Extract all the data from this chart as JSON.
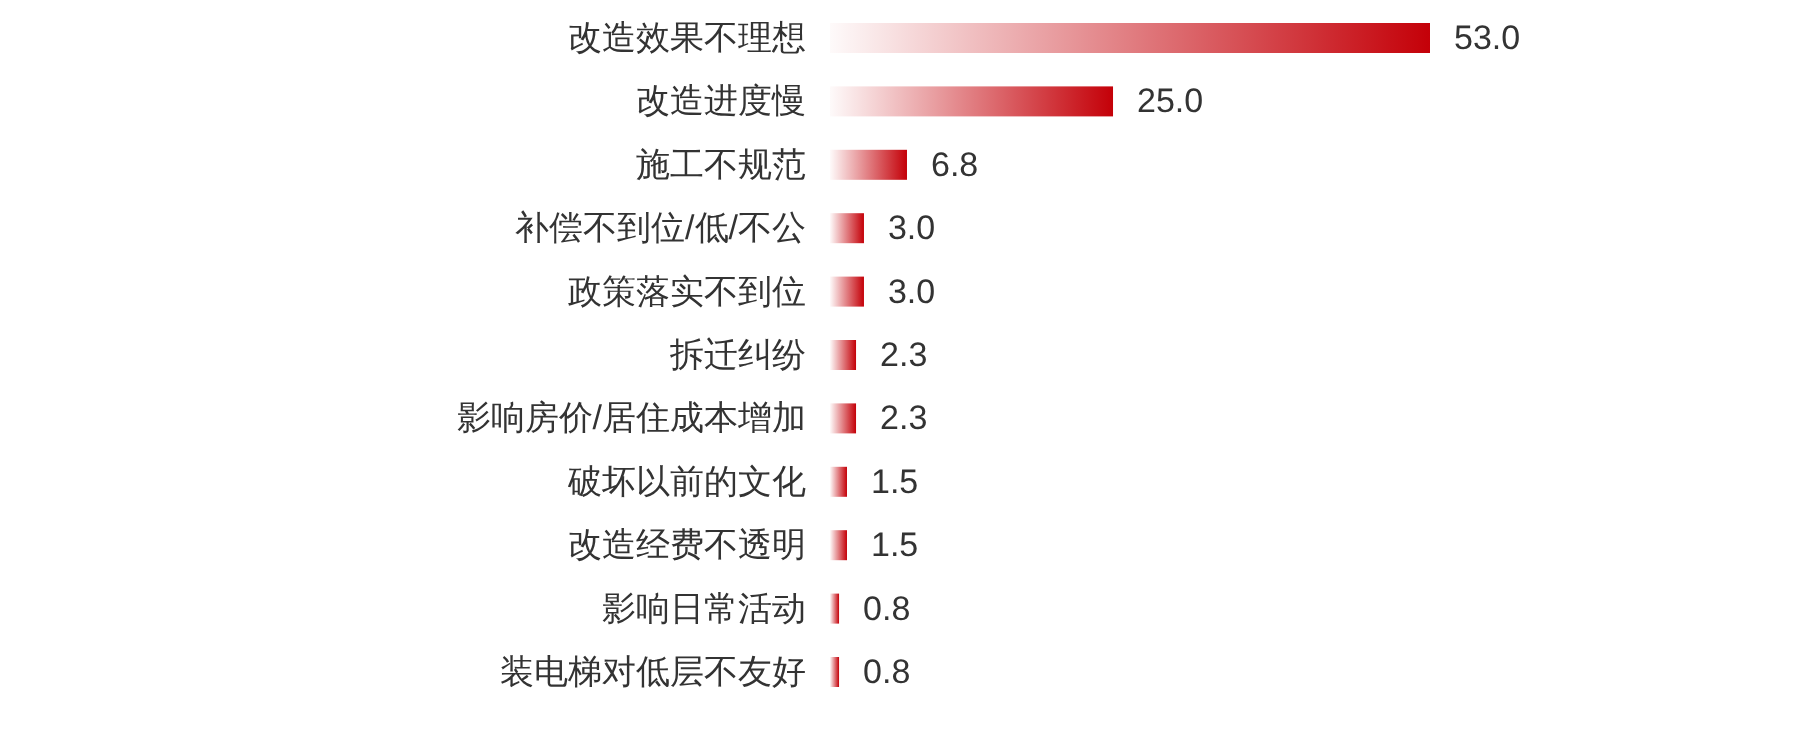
{
  "chart_data": {
    "type": "bar",
    "orientation": "horizontal",
    "categories": [
      "改造效果不理想",
      "改造进度慢",
      "施工不规范",
      "补偿不到位/低/不公",
      "政策落实不到位",
      "拆迁纠纷",
      "影响房价/居住成本增加",
      "破坏以前的文化",
      "改造经费不透明",
      "影响日常活动",
      "装电梯对低层不友好"
    ],
    "values": [
      53.0,
      25.0,
      6.8,
      3.0,
      3.0,
      2.3,
      2.3,
      1.5,
      1.5,
      0.8,
      0.8
    ],
    "value_labels": [
      "53.0",
      "25.0",
      "6.8",
      "3.0",
      "3.0",
      "2.3",
      "2.3",
      "1.5",
      "1.5",
      "0.8",
      "0.8"
    ],
    "color": "#c40008"
  }
}
